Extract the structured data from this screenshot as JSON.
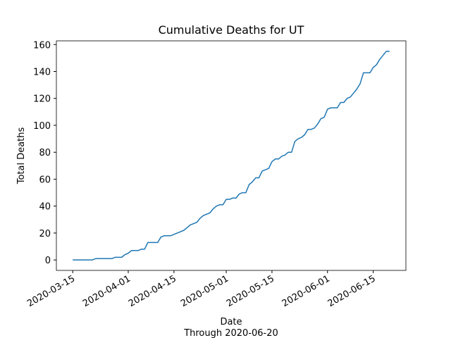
{
  "chart_data": {
    "type": "line",
    "title": "Cumulative Deaths for UT",
    "xlabel": "Date",
    "subtitle": "Through 2020-06-20",
    "ylabel": "Total Deaths",
    "x": [
      "2020-03-15",
      "2020-03-16",
      "2020-03-17",
      "2020-03-18",
      "2020-03-19",
      "2020-03-20",
      "2020-03-21",
      "2020-03-22",
      "2020-03-23",
      "2020-03-24",
      "2020-03-25",
      "2020-03-26",
      "2020-03-27",
      "2020-03-28",
      "2020-03-29",
      "2020-03-30",
      "2020-03-31",
      "2020-04-01",
      "2020-04-02",
      "2020-04-03",
      "2020-04-04",
      "2020-04-05",
      "2020-04-06",
      "2020-04-07",
      "2020-04-08",
      "2020-04-09",
      "2020-04-10",
      "2020-04-11",
      "2020-04-12",
      "2020-04-13",
      "2020-04-14",
      "2020-04-15",
      "2020-04-16",
      "2020-04-17",
      "2020-04-18",
      "2020-04-19",
      "2020-04-20",
      "2020-04-21",
      "2020-04-22",
      "2020-04-23",
      "2020-04-24",
      "2020-04-25",
      "2020-04-26",
      "2020-04-27",
      "2020-04-28",
      "2020-04-29",
      "2020-04-30",
      "2020-05-01",
      "2020-05-02",
      "2020-05-03",
      "2020-05-04",
      "2020-05-05",
      "2020-05-06",
      "2020-05-07",
      "2020-05-08",
      "2020-05-09",
      "2020-05-10",
      "2020-05-11",
      "2020-05-12",
      "2020-05-13",
      "2020-05-14",
      "2020-05-15",
      "2020-05-16",
      "2020-05-17",
      "2020-05-18",
      "2020-05-19",
      "2020-05-20",
      "2020-05-21",
      "2020-05-22",
      "2020-05-23",
      "2020-05-24",
      "2020-05-25",
      "2020-05-26",
      "2020-05-27",
      "2020-05-28",
      "2020-05-29",
      "2020-05-30",
      "2020-05-31",
      "2020-06-01",
      "2020-06-02",
      "2020-06-03",
      "2020-06-04",
      "2020-06-05",
      "2020-06-06",
      "2020-06-07",
      "2020-06-08",
      "2020-06-09",
      "2020-06-10",
      "2020-06-11",
      "2020-06-12",
      "2020-06-13",
      "2020-06-14",
      "2020-06-15",
      "2020-06-16",
      "2020-06-17",
      "2020-06-18",
      "2020-06-19",
      "2020-06-20"
    ],
    "series": [
      {
        "name": "UT",
        "color": "#1f77b4",
        "values": [
          0,
          0,
          0,
          0,
          0,
          0,
          0,
          1,
          1,
          1,
          1,
          1,
          1,
          2,
          2,
          2,
          4,
          5,
          7,
          7,
          7,
          8,
          8,
          13,
          13,
          13,
          13,
          17,
          18,
          18,
          18,
          19,
          20,
          21,
          22,
          24,
          26,
          27,
          28,
          31,
          33,
          34,
          35,
          38,
          40,
          41,
          41,
          45,
          45,
          46,
          46,
          49,
          50,
          50,
          56,
          58,
          61,
          61,
          66,
          67,
          68,
          73,
          75,
          75,
          77,
          78,
          80,
          80,
          88,
          90,
          91,
          93,
          97,
          97,
          98,
          101,
          105,
          106,
          112,
          113,
          113,
          113,
          117,
          117,
          120,
          121,
          124,
          127,
          131,
          139,
          139,
          139,
          143,
          145,
          149,
          152,
          155,
          155
        ]
      }
    ],
    "xlim": [
      "2020-03-10",
      "2020-06-25"
    ],
    "xticks": [
      "2020-03-15",
      "2020-04-01",
      "2020-04-15",
      "2020-05-01",
      "2020-05-15",
      "2020-06-01",
      "2020-06-15"
    ],
    "ylim": [
      -7.75,
      162.75
    ],
    "yticks": [
      0,
      20,
      40,
      60,
      80,
      100,
      120,
      140,
      160
    ]
  }
}
